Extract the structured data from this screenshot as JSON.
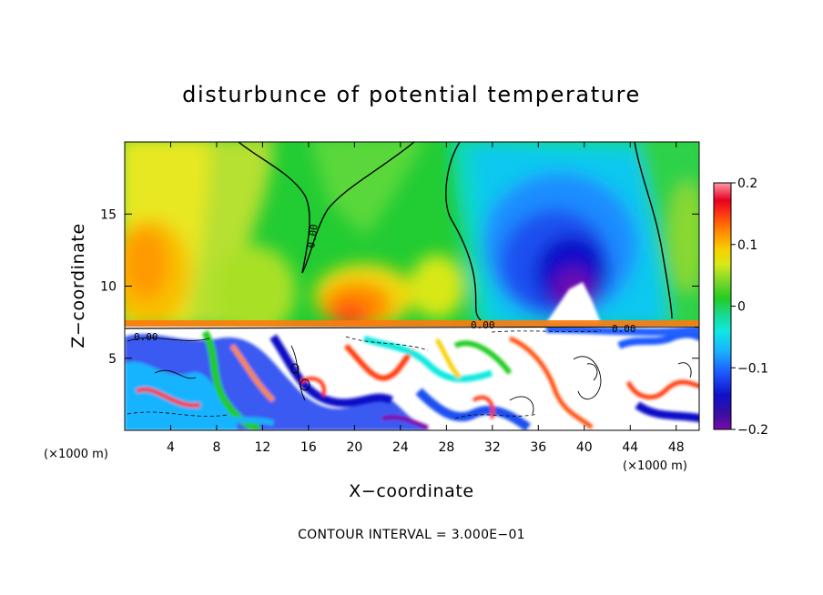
{
  "chart_data": {
    "type": "heatmap",
    "title": "disturbunce of potential temperature",
    "xlabel": "X−coordinate",
    "ylabel": "Z−coordinate",
    "x_unit_left": "(×1000 m)",
    "x_unit_right": "(×1000 m)",
    "footer": "CONTOUR INTERVAL = 3.000E−01",
    "xlim": [
      0,
      50
    ],
    "ylim": [
      0,
      20
    ],
    "x_ticks": [
      "4",
      "8",
      "12",
      "16",
      "20",
      "24",
      "28",
      "32",
      "36",
      "40",
      "44",
      "48"
    ],
    "y_ticks": [
      "5",
      "10",
      "15"
    ],
    "colorbar": {
      "range": [
        -0.2,
        0.2
      ],
      "tick_labels": [
        "0.2",
        "0.1",
        "0",
        "−0.1",
        "−0.2"
      ],
      "tick_values": [
        0.2,
        0.1,
        0,
        -0.1,
        -0.2
      ]
    },
    "contour_labels": [
      "0.00",
      "0.00",
      "0.00",
      "0.00"
    ],
    "regions": [
      {
        "name": "upper-layer-warm-west",
        "x_range": [
          0,
          6
        ],
        "z_range": [
          8,
          16
        ],
        "value": 0.09
      },
      {
        "name": "upper-layer-warm-center",
        "x_range": [
          17,
          25
        ],
        "z_range": [
          7.5,
          11
        ],
        "value": 0.1
      },
      {
        "name": "upper-layer-cold-cell",
        "x_range": [
          33,
          43
        ],
        "z_range": [
          9,
          17
        ],
        "value": -0.18
      },
      {
        "name": "interface-level",
        "z": 7.2,
        "value": 0.1
      },
      {
        "name": "lower-layer-turbulence",
        "x_range": [
          0,
          50
        ],
        "z_range": [
          0,
          7.2
        ],
        "value_range": [
          -0.2,
          0.2
        ]
      }
    ]
  }
}
